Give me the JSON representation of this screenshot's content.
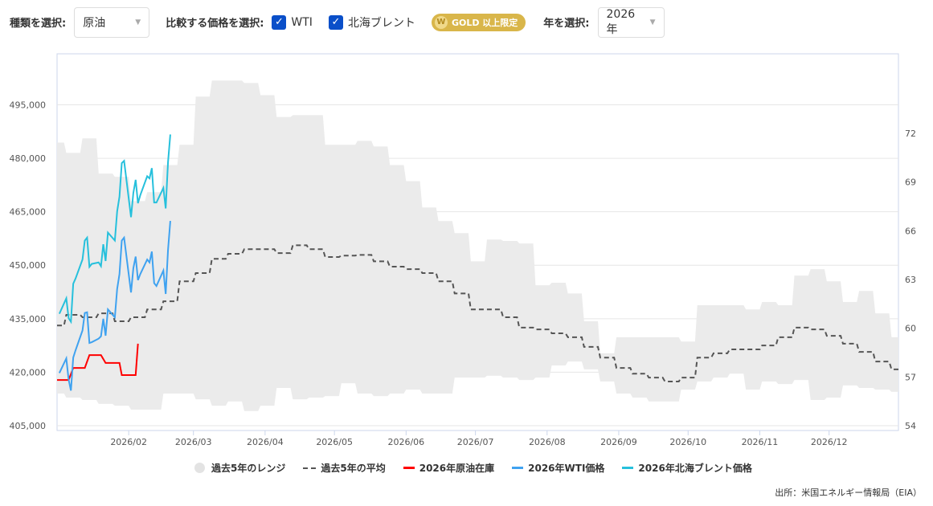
{
  "controls": {
    "type_label": "種類を選択:",
    "type_value": "原油",
    "compare_label": "比較する価格を選択:",
    "wti": {
      "label": "WTI",
      "checked": true
    },
    "brent": {
      "label": "北海ブレント",
      "checked": true
    },
    "gold_badge": "GOLD 以上限定",
    "year_label": "年を選択:",
    "year_value": "2026年"
  },
  "legend": [
    "過去5年のレンジ",
    "過去5年の平均",
    "2026年原油在庫",
    "2026年WTI価格",
    "2026年北海ブレント価格"
  ],
  "source": "出所：米国エネルギー情報局（EIA）",
  "colors": {
    "range": "#ebebeb",
    "average": "#555555",
    "inventory": "#ff0000",
    "wti": "#3fa2f0",
    "brent": "#26c0dc",
    "accent": "#0a4fc9",
    "gold": "#d9b64a"
  },
  "chart_data": {
    "type": "line",
    "grid": true,
    "legend_position": "bottom",
    "x_ticks": [
      {
        "date": "2026-02-01",
        "label": "2026/02"
      },
      {
        "date": "2026-03-01",
        "label": "2026/03"
      },
      {
        "date": "2026-04-01",
        "label": "2026/04"
      },
      {
        "date": "2026-05-01",
        "label": "2026/05"
      },
      {
        "date": "2026-06-01",
        "label": "2026/06"
      },
      {
        "date": "2026-07-01",
        "label": "2026/07"
      },
      {
        "date": "2026-08-01",
        "label": "2026/08"
      },
      {
        "date": "2026-09-01",
        "label": "2026/09"
      },
      {
        "date": "2026-10-01",
        "label": "2026/10"
      },
      {
        "date": "2026-11-01",
        "label": "2026/11"
      },
      {
        "date": "2026-12-01",
        "label": "2026/12"
      }
    ],
    "xlim": [
      "2026-01-01",
      "2026-12-31"
    ],
    "y_left": {
      "ticks": [
        "405,000",
        "420,000",
        "435,000",
        "450,000",
        "465,000",
        "480,000",
        "495,000"
      ],
      "values": [
        405000,
        420000,
        435000,
        450000,
        465000,
        480000,
        495000
      ],
      "ylim": [
        403650,
        509300
      ]
    },
    "y_right": {
      "ticks": [
        "54",
        "57",
        "60",
        "63",
        "66",
        "69",
        "72"
      ],
      "values": [
        54,
        57,
        60,
        63,
        66,
        69,
        72
      ],
      "ylim": [
        53.7,
        76.9
      ]
    },
    "weekly_dates": [
      "2026-01-01",
      "2026-01-08",
      "2026-01-15",
      "2026-01-22",
      "2026-01-29",
      "2026-02-05",
      "2026-02-12",
      "2026-02-19",
      "2026-02-26",
      "2026-03-05",
      "2026-03-12",
      "2026-03-19",
      "2026-03-26",
      "2026-04-02",
      "2026-04-09",
      "2026-04-16",
      "2026-04-23",
      "2026-04-30",
      "2026-05-07",
      "2026-05-14",
      "2026-05-21",
      "2026-05-28",
      "2026-06-04",
      "2026-06-11",
      "2026-06-18",
      "2026-06-25",
      "2026-07-02",
      "2026-07-09",
      "2026-07-16",
      "2026-07-23",
      "2026-07-30",
      "2026-08-06",
      "2026-08-13",
      "2026-08-20",
      "2026-08-27",
      "2026-09-03",
      "2026-09-10",
      "2026-09-17",
      "2026-09-24",
      "2026-10-01",
      "2026-10-08",
      "2026-10-15",
      "2026-10-22",
      "2026-10-29",
      "2026-11-05",
      "2026-11-12",
      "2026-11-19",
      "2026-11-26",
      "2026-12-03",
      "2026-12-10",
      "2026-12-17",
      "2026-12-24",
      "2026-12-31"
    ],
    "range_high": [
      484400,
      481500,
      485600,
      475700,
      474800,
      468000,
      470500,
      478100,
      483800,
      497300,
      501800,
      501800,
      501100,
      497700,
      491600,
      492100,
      492100,
      483800,
      483800,
      484900,
      483300,
      478100,
      473600,
      466200,
      462400,
      459000,
      451100,
      457200,
      456800,
      456100,
      444400,
      445100,
      442100,
      434300,
      425300,
      429800,
      429800,
      429800,
      429800,
      428600,
      438800,
      438800,
      438800,
      437600,
      439700,
      438800,
      447100,
      448900,
      445500,
      439700,
      442800,
      436500,
      429800
    ],
    "range_low": [
      414000,
      412900,
      412200,
      411100,
      410600,
      409500,
      409500,
      414000,
      414000,
      412400,
      410600,
      411800,
      409100,
      410600,
      415600,
      412400,
      412900,
      413300,
      416900,
      414000,
      413300,
      414000,
      415100,
      414000,
      414000,
      418500,
      418500,
      419000,
      418500,
      417800,
      418500,
      421900,
      423000,
      420800,
      417400,
      414000,
      412900,
      411800,
      411800,
      415100,
      417400,
      418500,
      419600,
      415100,
      417400,
      416700,
      417800,
      412200,
      412900,
      416300,
      415600,
      415100,
      414500
    ],
    "average": [
      433100,
      436100,
      435400,
      436500,
      434300,
      435400,
      437600,
      439900,
      445500,
      447800,
      451800,
      453200,
      454500,
      454500,
      453400,
      455600,
      454500,
      452300,
      452700,
      452900,
      451100,
      449600,
      448900,
      447800,
      445500,
      442100,
      437600,
      437600,
      435400,
      432500,
      432000,
      430900,
      429800,
      427100,
      424100,
      421200,
      419600,
      418500,
      417400,
      418500,
      424100,
      425300,
      426400,
      426400,
      427500,
      429800,
      432500,
      432000,
      430200,
      428000,
      425700,
      423000,
      420800
    ],
    "inventory": [
      [
        "2026-01-01",
        417800
      ],
      [
        "2026-01-06",
        417800
      ],
      [
        "2026-01-08",
        421200
      ],
      [
        "2026-01-13",
        421200
      ],
      [
        "2026-01-15",
        424800
      ],
      [
        "2026-01-20",
        424800
      ],
      [
        "2026-01-22",
        422600
      ],
      [
        "2026-01-28",
        422600
      ],
      [
        "2026-01-29",
        419200
      ],
      [
        "2026-02-04",
        419200
      ],
      [
        "2026-02-05",
        428000
      ]
    ],
    "daily_dates": [
      "2026-01-02",
      "2026-01-05",
      "2026-01-06",
      "2026-01-07",
      "2026-01-08",
      "2026-01-09",
      "2026-01-12",
      "2026-01-13",
      "2026-01-14",
      "2026-01-15",
      "2026-01-16",
      "2026-01-19",
      "2026-01-20",
      "2026-01-21",
      "2026-01-22",
      "2026-01-23",
      "2026-01-26",
      "2026-01-27",
      "2026-01-28",
      "2026-01-29",
      "2026-01-30",
      "2026-02-02",
      "2026-02-03",
      "2026-02-04",
      "2026-02-05",
      "2026-02-06",
      "2026-02-09",
      "2026-02-10",
      "2026-02-11",
      "2026-02-12",
      "2026-02-13",
      "2026-02-16",
      "2026-02-17",
      "2026-02-18",
      "2026-02-19"
    ],
    "wti": [
      57.24,
      58.14,
      56.84,
      56.16,
      58.19,
      58.64,
      59.86,
      60.94,
      60.98,
      59.09,
      59.14,
      59.36,
      59.5,
      60.58,
      59.54,
      61.16,
      60.67,
      62.42,
      63.33,
      65.4,
      65.58,
      62.2,
      63.69,
      64.41,
      62.96,
      63.33,
      64.23,
      64.05,
      64.72,
      62.78,
      62.6,
      63.55,
      62.11,
      64.81,
      66.61
    ],
    "brent": [
      60.89,
      61.84,
      60.62,
      60.4,
      62.74,
      63.06,
      64.23,
      65.4,
      65.58,
      63.78,
      63.96,
      64.05,
      63.82,
      65.17,
      64.14,
      65.89,
      65.4,
      67.2,
      68.1,
      70.17,
      70.31,
      66.84,
      68.33,
      69.14,
      67.7,
      68.19,
      69.36,
      69.23,
      69.86,
      67.74,
      67.74,
      68.64,
      67.38,
      70.22,
      71.93
    ]
  }
}
